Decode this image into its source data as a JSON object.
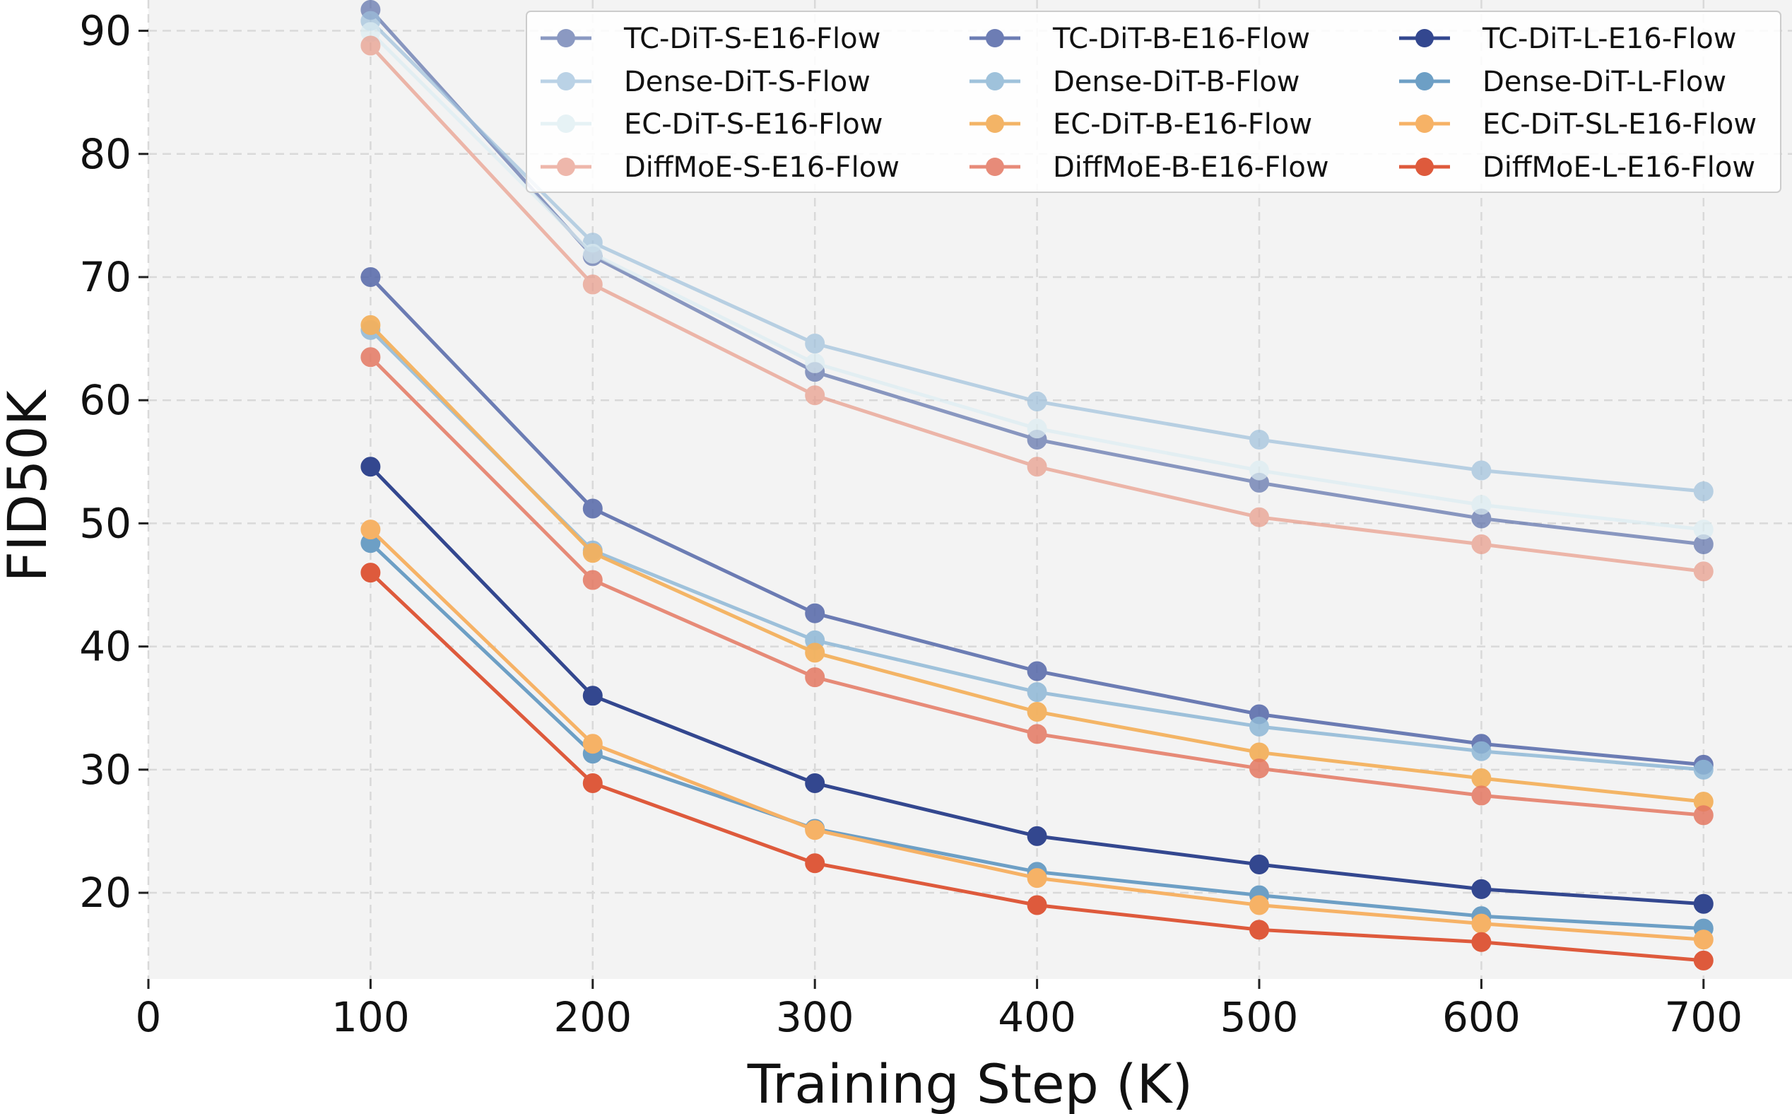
{
  "chart_data": {
    "type": "line",
    "title": "",
    "xlabel": "Training Step (K)",
    "ylabel": "FID50K",
    "xlim": [
      0,
      740
    ],
    "ylim": [
      13,
      92.5
    ],
    "xticks": [
      0,
      100,
      200,
      300,
      400,
      500,
      600,
      700
    ],
    "yticks": [
      20,
      30,
      40,
      50,
      60,
      70,
      80,
      90
    ],
    "grid": true,
    "legend_position": "top-right",
    "x": [
      100,
      200,
      300,
      400,
      500,
      600,
      700
    ],
    "series": [
      {
        "name": "TC-DiT-S-E16-Flow",
        "color": "#5b6faa",
        "alpha": 0.7,
        "values": [
          91.7,
          71.7,
          62.3,
          56.8,
          53.3,
          50.4,
          48.3
        ]
      },
      {
        "name": "Dense-DiT-S-Flow",
        "color": "#9ec0dc",
        "alpha": 0.7,
        "values": [
          90.8,
          72.8,
          64.6,
          59.9,
          56.8,
          54.3,
          52.6
        ]
      },
      {
        "name": "EC-DiT-S-E16-Flow",
        "color": "#dcedf2",
        "alpha": 0.7,
        "values": [
          89.9,
          71.9,
          63.0,
          57.7,
          54.3,
          51.5,
          49.5
        ]
      },
      {
        "name": "DiffMoE-S-E16-Flow",
        "color": "#e89a88",
        "alpha": 0.7,
        "values": [
          88.8,
          69.4,
          60.4,
          54.6,
          50.5,
          48.3,
          46.1
        ]
      },
      {
        "name": "TC-DiT-B-E16-Flow",
        "color": "#5467a8",
        "alpha": 0.85,
        "values": [
          70.0,
          51.2,
          42.7,
          38.0,
          34.5,
          32.1,
          30.4
        ]
      },
      {
        "name": "Dense-DiT-B-Flow",
        "color": "#8fb8d6",
        "alpha": 0.85,
        "values": [
          65.7,
          47.8,
          40.5,
          36.3,
          33.5,
          31.5,
          30.0
        ]
      },
      {
        "name": "EC-DiT-B-E16-Flow",
        "color": "#f3b15e",
        "alpha": 0.95,
        "values": [
          66.1,
          47.6,
          39.5,
          34.7,
          31.4,
          29.3,
          27.4
        ]
      },
      {
        "name": "DiffMoE-B-E16-Flow",
        "color": "#e47862",
        "alpha": 0.85,
        "values": [
          63.5,
          45.4,
          37.5,
          32.9,
          30.1,
          27.9,
          26.3
        ]
      },
      {
        "name": "TC-DiT-L-E16-Flow",
        "color": "#33478f",
        "alpha": 1.0,
        "values": [
          54.6,
          36.0,
          28.9,
          24.6,
          22.3,
          20.3,
          19.1
        ]
      },
      {
        "name": "Dense-DiT-L-Flow",
        "color": "#6d9fc5",
        "alpha": 1.0,
        "values": [
          48.4,
          31.3,
          25.2,
          21.7,
          19.8,
          18.1,
          17.1
        ]
      },
      {
        "name": "EC-DiT-SL-E16-Flow",
        "color": "#f6b266",
        "alpha": 1.0,
        "values": [
          49.5,
          32.1,
          25.1,
          21.2,
          19.0,
          17.5,
          16.2
        ]
      },
      {
        "name": "DiffMoE-L-E16-Flow",
        "color": "#de5a3c",
        "alpha": 1.0,
        "values": [
          46.0,
          28.9,
          22.4,
          19.0,
          17.0,
          16.0,
          14.5
        ]
      }
    ]
  }
}
